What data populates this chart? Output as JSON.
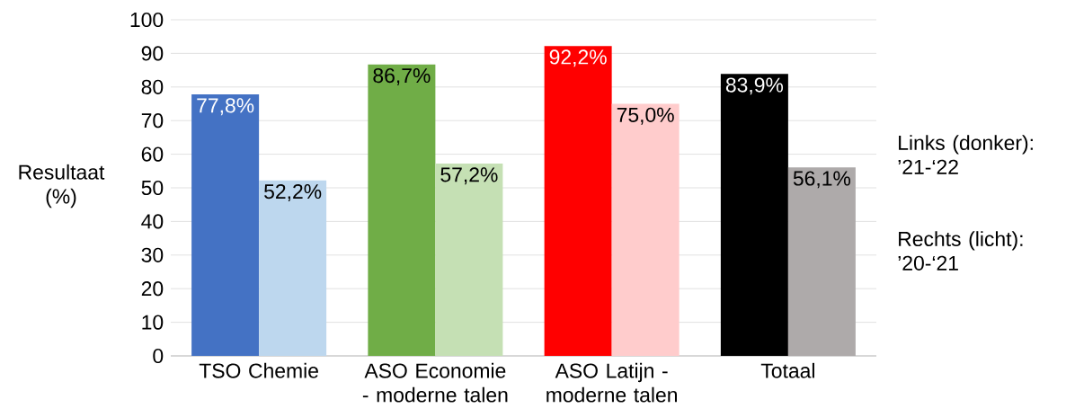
{
  "chart_data": {
    "type": "bar",
    "ylabel": "Resultaat (%)",
    "categories": [
      "TSO Chemie",
      "ASO Economie - moderne talen",
      "ASO Latijn - moderne talen",
      "Totaal"
    ],
    "series": [
      {
        "colors": [
          "#4472c4",
          "#70ad47",
          "#ff0000",
          "#000000"
        ],
        "values": [
          77.8,
          86.7,
          92.2,
          83.9
        ],
        "value_labels": [
          "77,8%",
          "86,7%",
          "92,2%",
          "83,9%"
        ]
      },
      {
        "colors": [
          "#bdd7ee",
          "#c5e0b4",
          "#ffcccc",
          "#aeaaaa"
        ],
        "values": [
          52.2,
          57.2,
          75.0,
          56.1
        ],
        "value_labels": [
          "52,2%",
          "57,2%",
          "75,0%",
          "56,1%"
        ]
      }
    ],
    "ylim": [
      0,
      100
    ],
    "yticks": [
      0,
      10,
      20,
      30,
      40,
      50,
      60,
      70,
      80,
      90,
      100
    ],
    "grid": "y",
    "annotations": [
      "Links (donker): ’21-‘22",
      "Rechts (licht): ’20-‘21"
    ]
  }
}
